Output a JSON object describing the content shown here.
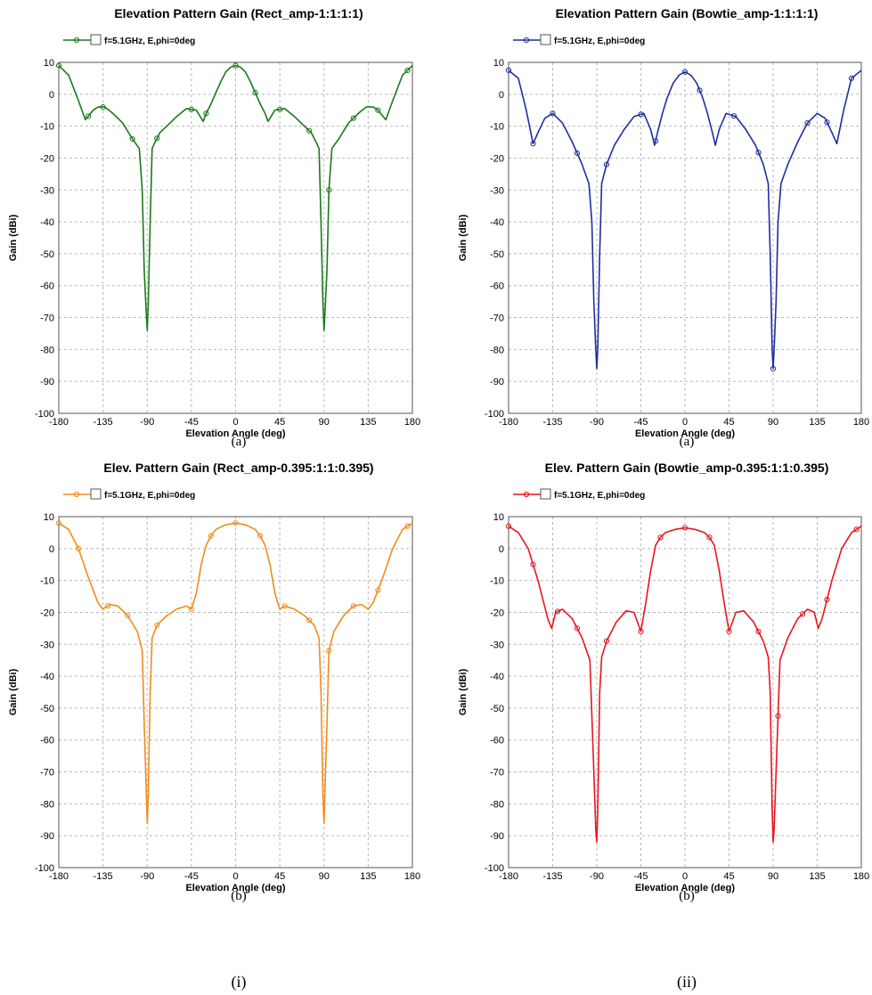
{
  "chart_data": [
    {
      "type": "line",
      "title": "Elevation Pattern Gain (Rect_amp-1:1:1:1)",
      "xlabel": "Elevation Angle (deg)",
      "ylabel": "Gain (dBi)",
      "subcaption": "(a)",
      "xlim": [
        -180,
        180
      ],
      "ylim": [
        -100,
        10
      ],
      "xticks": [
        "-180",
        "-135",
        "-90",
        "-45",
        "0",
        "45",
        "90",
        "135",
        "180"
      ],
      "yticks": [
        "10",
        "0",
        "-10",
        "-20",
        "-30",
        "-40",
        "-50",
        "-60",
        "-70",
        "-80",
        "-90",
        "-100"
      ],
      "grid": true,
      "legend_position": "top-left",
      "series": [
        {
          "name": "f=5.1GHz, E,phi=0deg",
          "color": "#1a7a1a",
          "x": [
            -180,
            -170,
            -160,
            -153,
            -145,
            -140,
            -133,
            -125,
            -115,
            -105,
            -98,
            -95,
            -93,
            -91,
            -90,
            -89,
            -87,
            -85,
            -82,
            -77,
            -70,
            -60,
            -50,
            -40,
            -33,
            -30,
            -25,
            -20,
            -15,
            -10,
            -5,
            0,
            5,
            10,
            15,
            20,
            25,
            30,
            33,
            40,
            50,
            60,
            70,
            77,
            82,
            85,
            87,
            89,
            90,
            91,
            93,
            95,
            98,
            105,
            115,
            125,
            133,
            140,
            145,
            153,
            160,
            170,
            180
          ],
          "y": [
            9,
            6,
            -2,
            -8,
            -5,
            -4,
            -4,
            -6,
            -9,
            -14,
            -17,
            -30,
            -55,
            -68,
            -74,
            -66,
            -40,
            -17,
            -15,
            -12,
            -10,
            -7,
            -4.5,
            -5,
            -8.5,
            -6,
            -3,
            0.5,
            4,
            7,
            8.5,
            9,
            8.5,
            7,
            4,
            0.5,
            -3,
            -6,
            -8.5,
            -5,
            -4.5,
            -7,
            -10,
            -12,
            -15,
            -17,
            -40,
            -66,
            -74,
            -68,
            -55,
            -30,
            -17,
            -14,
            -9,
            -6,
            -4,
            -4,
            -5,
            -8,
            -2,
            6,
            9
          ],
          "marker_x": [
            -180,
            -150,
            -135,
            -105,
            -80,
            -45,
            -30,
            0,
            20,
            45,
            75,
            95,
            120,
            145,
            175
          ]
        }
      ]
    },
    {
      "type": "line",
      "title": "Elevation Pattern Gain (Bowtie_amp-1:1:1:1)",
      "xlabel": "Elevation Angle (deg)",
      "ylabel": "Gain (dBi)",
      "subcaption": "(a)",
      "xlim": [
        -180,
        180
      ],
      "ylim": [
        -100,
        10
      ],
      "xticks": [
        "-180",
        "-135",
        "-90",
        "-45",
        "0",
        "45",
        "90",
        "135",
        "180"
      ],
      "yticks": [
        "10",
        "0",
        "-10",
        "-20",
        "-30",
        "-40",
        "-50",
        "-60",
        "-70",
        "-80",
        "-90",
        "-100"
      ],
      "grid": true,
      "legend_position": "top-left",
      "series": [
        {
          "name": "f=5.1GHz, E,phi=0deg",
          "color": "#1f2f9e",
          "x": [
            -180,
            -170,
            -162,
            -155,
            -150,
            -143,
            -135,
            -125,
            -115,
            -105,
            -98,
            -95,
            -93,
            -91,
            -90,
            -89,
            -87,
            -85,
            -80,
            -72,
            -62,
            -52,
            -42,
            -35,
            -31,
            -28,
            -23,
            -18,
            -12,
            -6,
            0,
            6,
            12,
            18,
            23,
            28,
            31,
            35,
            42,
            52,
            62,
            72,
            80,
            85,
            87,
            89,
            90,
            91,
            93,
            95,
            98,
            105,
            115,
            125,
            135,
            143,
            150,
            155,
            162,
            170,
            180
          ],
          "y": [
            7.5,
            5,
            -5,
            -15.5,
            -12,
            -7.5,
            -6,
            -9,
            -15,
            -22,
            -28,
            -40,
            -65,
            -80,
            -86,
            -80,
            -50,
            -28,
            -22,
            -16,
            -11,
            -7,
            -6,
            -11,
            -16,
            -12,
            -6,
            -1,
            3.5,
            6,
            7,
            6,
            3.5,
            -1,
            -6,
            -12,
            -16,
            -11,
            -6,
            -7,
            -11,
            -16,
            -22,
            -28,
            -50,
            -80,
            -86,
            -80,
            -65,
            -40,
            -28,
            -22,
            -15,
            -9,
            -6,
            -7.5,
            -12,
            -15.5,
            -5,
            5,
            7.5
          ],
          "marker_x": [
            -180,
            -155,
            -135,
            -110,
            -80,
            -45,
            -30,
            0,
            15,
            50,
            75,
            90,
            125,
            145,
            170
          ]
        }
      ]
    },
    {
      "type": "line",
      "title": "Elev. Pattern Gain (Rect_amp-0.395:1:1:0.395)",
      "xlabel": "Elevation Angle (deg)",
      "ylabel": "Gain (dBi)",
      "subcaption": "(b)",
      "xlim": [
        -180,
        180
      ],
      "ylim": [
        -100,
        10
      ],
      "xticks": [
        "-180",
        "-135",
        "-90",
        "-45",
        "0",
        "45",
        "90",
        "135",
        "180"
      ],
      "yticks": [
        "10",
        "0",
        "-10",
        "-20",
        "-30",
        "-40",
        "-50",
        "-60",
        "-70",
        "-80",
        "-90",
        "-100"
      ],
      "grid": true,
      "legend_position": "top-left",
      "series": [
        {
          "name": "f=5.1GHz, E,phi=0deg",
          "color": "#f28b1e",
          "x": [
            -180,
            -170,
            -160,
            -150,
            -140,
            -135,
            -128,
            -120,
            -110,
            -100,
            -95,
            -93,
            -91,
            -90,
            -89,
            -87,
            -85,
            -80,
            -70,
            -60,
            -50,
            -45,
            -40,
            -35,
            -30,
            -25,
            -20,
            -10,
            0,
            10,
            20,
            25,
            30,
            35,
            40,
            45,
            50,
            60,
            70,
            80,
            85,
            87,
            89,
            90,
            91,
            93,
            95,
            100,
            110,
            120,
            128,
            135,
            140,
            150,
            160,
            170,
            180
          ],
          "y": [
            8,
            6,
            0,
            -9,
            -17,
            -19,
            -17.5,
            -18,
            -21,
            -26,
            -32,
            -55,
            -75,
            -86,
            -78,
            -45,
            -28,
            -24,
            -21,
            -19,
            -18,
            -19,
            -14,
            -5,
            1,
            4,
            6,
            7.5,
            8,
            7.5,
            6,
            4,
            1,
            -5,
            -14,
            -19,
            -18,
            -19,
            -21,
            -24,
            -28,
            -45,
            -78,
            -86,
            -75,
            -55,
            -32,
            -26,
            -21,
            -18,
            -17.5,
            -19,
            -17,
            -9,
            0,
            6,
            8
          ],
          "marker_x": [
            -180,
            -160,
            -130,
            -110,
            -80,
            -45,
            -25,
            0,
            25,
            50,
            75,
            95,
            120,
            145,
            175
          ]
        }
      ]
    },
    {
      "type": "line",
      "title": "Elev. Pattern Gain (Bowtie_amp-0.395:1:1:0.395)",
      "xlabel": "Elevation Angle (deg)",
      "ylabel": "Gain (dBi)",
      "subcaption": "(b)",
      "xlim": [
        -180,
        180
      ],
      "ylim": [
        -100,
        10
      ],
      "xticks": [
        "-180",
        "-135",
        "-90",
        "-45",
        "0",
        "45",
        "90",
        "135",
        "180"
      ],
      "yticks": [
        "10",
        "0",
        "-10",
        "-20",
        "-30",
        "-40",
        "-50",
        "-60",
        "-70",
        "-80",
        "-90",
        "-100"
      ],
      "grid": true,
      "legend_position": "top-left",
      "series": [
        {
          "name": "f=5.1GHz, E,phi=0deg",
          "color": "#e8161c",
          "x": [
            -180,
            -170,
            -160,
            -150,
            -140,
            -136,
            -132,
            -125,
            -115,
            -105,
            -97,
            -93,
            -91,
            -90,
            -89,
            -87,
            -85,
            -80,
            -70,
            -60,
            -52,
            -45,
            -40,
            -35,
            -30,
            -25,
            -20,
            -10,
            0,
            10,
            20,
            25,
            30,
            35,
            40,
            45,
            52,
            60,
            70,
            80,
            85,
            87,
            89,
            90,
            91,
            93,
            97,
            105,
            115,
            125,
            132,
            136,
            140,
            150,
            160,
            170,
            180
          ],
          "y": [
            7,
            5,
            0,
            -10,
            -22,
            -25,
            -20,
            -19,
            -22,
            -28,
            -35,
            -70,
            -88,
            -92,
            -82,
            -45,
            -34,
            -29,
            -23,
            -19.5,
            -20,
            -26,
            -17,
            -7,
            1,
            3.5,
            5,
            6,
            6.5,
            6,
            5,
            3.5,
            1,
            -7,
            -17,
            -26,
            -20,
            -19.5,
            -23,
            -29,
            -34,
            -45,
            -82,
            -92,
            -88,
            -70,
            -35,
            -28,
            -22,
            -19,
            -20,
            -25,
            -22,
            -10,
            0,
            5,
            7
          ],
          "marker_x": [
            -180,
            -155,
            -130,
            -110,
            -80,
            -45,
            -25,
            0,
            25,
            45,
            75,
            95,
            120,
            145,
            175
          ]
        }
      ]
    }
  ],
  "panel_labels": [
    "(i)",
    "(ii)"
  ]
}
